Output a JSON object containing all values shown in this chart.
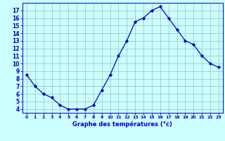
{
  "hours": [
    0,
    1,
    2,
    3,
    4,
    5,
    6,
    7,
    8,
    9,
    10,
    11,
    12,
    13,
    14,
    15,
    16,
    17,
    18,
    19,
    20,
    21,
    22,
    23
  ],
  "temps": [
    8.5,
    7.0,
    6.0,
    5.5,
    4.5,
    4.0,
    4.0,
    4.0,
    4.5,
    6.5,
    8.5,
    11.0,
    13.0,
    15.5,
    16.0,
    17.0,
    17.5,
    16.0,
    14.5,
    13.0,
    12.5,
    11.0,
    10.0,
    9.5
  ],
  "xlabel": "Graphe des températures (°c)",
  "line_color": "#0000cc",
  "marker_color": "#0000cc",
  "background_color": "#ccffff",
  "grid_color": "#99cccc",
  "axis_color": "#0000cc",
  "ylim": [
    3.5,
    18.0
  ],
  "xlim": [
    -0.5,
    23.5
  ],
  "yticks": [
    4,
    5,
    6,
    7,
    8,
    9,
    10,
    11,
    12,
    13,
    14,
    15,
    16,
    17
  ],
  "xticks": [
    0,
    1,
    2,
    3,
    4,
    5,
    6,
    7,
    8,
    9,
    10,
    11,
    12,
    13,
    14,
    15,
    16,
    17,
    18,
    19,
    20,
    21,
    22,
    23
  ]
}
